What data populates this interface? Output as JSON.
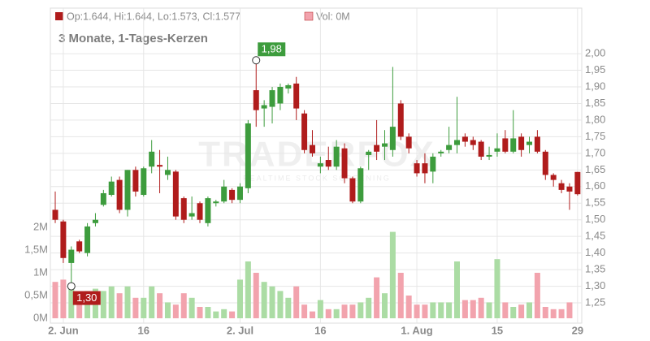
{
  "chart_data": {
    "type": "candlestick",
    "legend": [
      "Op:1.644, Hi:1.644, Lo:1.573, Cl:1.577",
      "Vol: 0M"
    ],
    "title": "3 Monate, 1-Tages-Kerzen",
    "watermark": "TRADERFOX",
    "watermark_sub": "REALTIME STOCK SCREENING",
    "categories": [
      null,
      "2. Jun",
      null,
      null,
      null,
      null,
      null,
      null,
      null,
      null,
      null,
      "16",
      null,
      null,
      null,
      null,
      null,
      null,
      null,
      null,
      null,
      null,
      null,
      "2. Jul",
      null,
      null,
      null,
      null,
      null,
      null,
      null,
      null,
      null,
      "16",
      null,
      null,
      null,
      null,
      null,
      null,
      null,
      null,
      null,
      null,
      null,
      "1. Aug",
      null,
      null,
      null,
      null,
      null,
      null,
      null,
      null,
      null,
      "15",
      null,
      null,
      null,
      null,
      null,
      null,
      null,
      null,
      null,
      "29"
    ],
    "open": [
      1.53,
      1.495,
      1.37,
      1.435,
      1.4,
      1.49,
      1.545,
      1.575,
      1.62,
      1.53,
      1.65,
      1.575,
      1.66,
      1.665,
      1.635,
      1.645,
      1.565,
      1.51,
      1.55,
      1.49,
      1.55,
      1.555,
      1.59,
      1.56,
      1.595,
      1.89,
      1.835,
      1.84,
      1.85,
      1.895,
      1.91,
      1.82,
      1.725,
      1.66,
      1.68,
      1.66,
      1.715,
      1.625,
      1.555,
      1.695,
      1.725,
      1.72,
      1.71,
      1.85,
      1.75,
      1.67,
      1.67,
      1.645,
      1.7,
      1.71,
      1.725,
      1.75,
      1.74,
      1.735,
      1.69,
      1.705,
      1.745,
      1.705,
      1.75,
      1.725,
      1.75,
      1.705,
      1.635,
      1.61,
      1.6,
      1.644
    ],
    "high": [
      1.585,
      1.5,
      1.42,
      1.44,
      1.49,
      1.52,
      1.59,
      1.63,
      1.63,
      1.65,
      1.66,
      1.66,
      1.74,
      1.71,
      1.69,
      1.65,
      1.57,
      1.57,
      1.555,
      1.57,
      1.56,
      1.62,
      1.595,
      1.61,
      1.8,
      1.98,
      1.86,
      1.9,
      1.91,
      1.91,
      1.93,
      1.83,
      1.77,
      1.69,
      1.72,
      1.74,
      1.73,
      1.63,
      1.66,
      1.71,
      1.8,
      1.77,
      1.96,
      1.86,
      1.76,
      1.68,
      1.7,
      1.7,
      1.71,
      1.78,
      1.87,
      1.76,
      1.75,
      1.74,
      1.72,
      1.76,
      1.77,
      1.83,
      1.76,
      1.75,
      1.77,
      1.71,
      1.64,
      1.62,
      1.61,
      1.644
    ],
    "low": [
      1.49,
      1.37,
      1.3,
      1.4,
      1.39,
      1.48,
      1.54,
      1.57,
      1.52,
      1.51,
      1.57,
      1.57,
      1.64,
      1.58,
      1.62,
      1.5,
      1.49,
      1.5,
      1.49,
      1.48,
      1.54,
      1.55,
      1.55,
      1.55,
      1.58,
      1.78,
      1.78,
      1.79,
      1.83,
      1.88,
      1.8,
      1.7,
      1.69,
      1.64,
      1.65,
      1.65,
      1.61,
      1.55,
      1.55,
      1.65,
      1.68,
      1.68,
      1.69,
      1.74,
      1.7,
      1.63,
      1.61,
      1.61,
      1.69,
      1.7,
      1.7,
      1.72,
      1.71,
      1.68,
      1.68,
      1.69,
      1.7,
      1.7,
      1.69,
      1.7,
      1.7,
      1.62,
      1.6,
      1.58,
      1.53,
      1.573
    ],
    "close": [
      1.5,
      1.385,
      1.41,
      1.405,
      1.48,
      1.5,
      1.58,
      1.615,
      1.53,
      1.65,
      1.585,
      1.655,
      1.705,
      1.66,
      1.65,
      1.51,
      1.5,
      1.52,
      1.5,
      1.565,
      1.555,
      1.6,
      1.56,
      1.6,
      1.79,
      1.83,
      1.845,
      1.89,
      1.9,
      1.905,
      1.835,
      1.71,
      1.7,
      1.67,
      1.66,
      1.72,
      1.625,
      1.555,
      1.655,
      1.705,
      1.705,
      1.73,
      1.78,
      1.75,
      1.715,
      1.64,
      1.64,
      1.69,
      1.705,
      1.725,
      1.74,
      1.735,
      1.725,
      1.69,
      1.695,
      1.715,
      1.705,
      1.745,
      1.71,
      1.735,
      1.705,
      1.635,
      1.62,
      1.59,
      1.585,
      1.577
    ],
    "up_color": "#3d9c3d",
    "down_color": "#b01c1c",
    "volume": {
      "name": "Vol",
      "axis": "y2",
      "up_color": "#abdca4",
      "down_color": "#f2a3ad",
      "values": [
        0.8,
        0.85,
        0.75,
        0.55,
        0.6,
        0.65,
        0.6,
        0.7,
        0.55,
        0.7,
        0.45,
        0.45,
        0.7,
        0.55,
        0.35,
        0.3,
        0.55,
        0.45,
        0.25,
        0.25,
        0.15,
        0.2,
        0.15,
        0.85,
        1.25,
        1.0,
        0.8,
        0.7,
        0.6,
        0.45,
        0.7,
        0.3,
        0.15,
        0.4,
        0.2,
        0.2,
        0.3,
        0.3,
        0.35,
        0.45,
        0.9,
        0.55,
        1.9,
        1.0,
        0.5,
        0.3,
        0.3,
        0.35,
        0.35,
        0.35,
        1.25,
        0.4,
        0.4,
        0.45,
        0.35,
        1.3,
        0.35,
        0.25,
        0.3,
        0.35,
        1.0,
        0.25,
        0.2,
        0.2,
        0.35,
        0
      ]
    },
    "annotations": [
      {
        "value": 1.98,
        "label": "1,98"
      },
      {
        "value": 1.3,
        "label": "1,30"
      }
    ],
    "ylim": [
      1.189,
      2.137
    ],
    "yticks": [
      {
        "value": 1.25,
        "label": "1,25"
      },
      {
        "value": 1.3,
        "label": "1,30"
      },
      {
        "value": 1.35,
        "label": "1,35"
      },
      {
        "value": 1.4,
        "label": "1,40"
      },
      {
        "value": 1.45,
        "label": "1,45"
      },
      {
        "value": 1.5,
        "label": "1,50"
      },
      {
        "value": 1.55,
        "label": "1,55"
      },
      {
        "value": 1.6,
        "label": "1,60"
      },
      {
        "value": 1.65,
        "label": "1,65"
      },
      {
        "value": 1.7,
        "label": "1,70"
      },
      {
        "value": 1.75,
        "label": "1,75"
      },
      {
        "value": 1.8,
        "label": "1,80"
      },
      {
        "value": 1.85,
        "label": "1,85"
      },
      {
        "value": 1.9,
        "label": "1,90"
      },
      {
        "value": 1.95,
        "label": "1,95"
      },
      {
        "value": 2.0,
        "label": "2,00"
      }
    ],
    "y2lim": [
      -0.107,
      6.82
    ],
    "y2ticks": [
      {
        "value": 0,
        "label": "0M"
      },
      {
        "value": 0.5,
        "label": "0,5M"
      },
      {
        "value": 1,
        "label": "1M"
      },
      {
        "value": 1.5,
        "label": "1,5M"
      },
      {
        "value": 2,
        "label": "2M"
      }
    ],
    "grid": true
  }
}
